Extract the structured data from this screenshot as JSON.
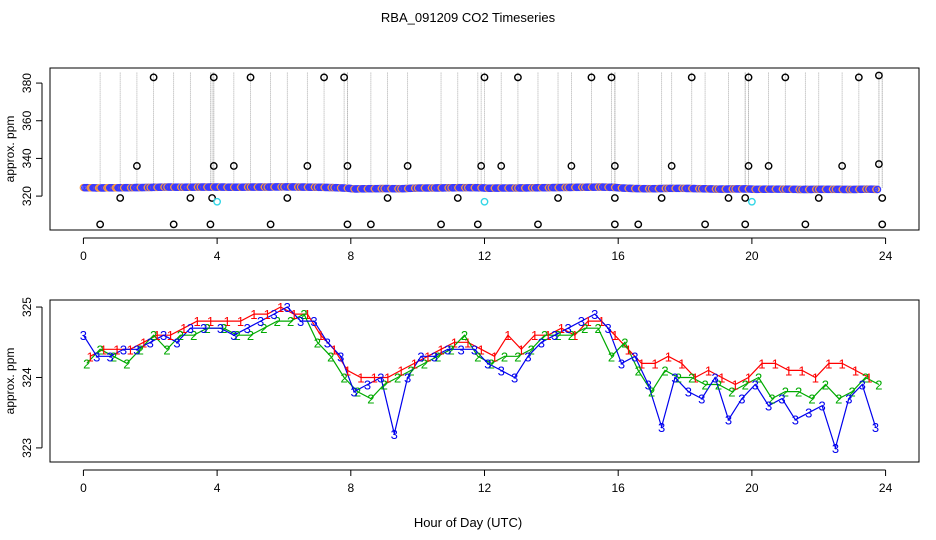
{
  "title": "RBA_091209  CO2 Timeseries",
  "xlabel": "Hour of Day (UTC)",
  "chart_data": [
    {
      "type": "scatter",
      "ylabel": "approx. ppm",
      "xlim": [
        -1,
        25
      ],
      "ylim": [
        302,
        388
      ],
      "xticks": [
        0,
        4,
        8,
        12,
        16,
        20,
        24
      ],
      "yticks": [
        320,
        340,
        360,
        380
      ],
      "grid": false,
      "series": [
        {
          "role": "trace",
          "color": "#3a3aff",
          "x": [
            0.0,
            0.25,
            0.5,
            0.75,
            1.0,
            1.5,
            2.0,
            2.5,
            3.0,
            3.5,
            3.9,
            4.1,
            4.5,
            5.0,
            5.5,
            6.0,
            6.5,
            7.0,
            7.5,
            7.9,
            8.1,
            8.5,
            9.0,
            9.5,
            10.0,
            10.5,
            11.0,
            11.5,
            11.9,
            12.1,
            12.5,
            13.0,
            13.5,
            14.0,
            14.5,
            15.0,
            15.5,
            15.9,
            16.1,
            16.5,
            17.0,
            17.5,
            18.0,
            18.5,
            19.0,
            19.5,
            19.9,
            20.1,
            20.5,
            21.0,
            21.5,
            22.0,
            22.5,
            23.0,
            23.5,
            23.8
          ],
          "y": [
            324.5,
            324.4,
            324.3,
            324.4,
            324.4,
            324.5,
            324.6,
            324.8,
            324.7,
            324.8,
            324.8,
            324.8,
            324.7,
            324.8,
            324.8,
            324.9,
            324.8,
            324.7,
            324.5,
            324.2,
            323.8,
            323.9,
            324.0,
            323.9,
            324.3,
            324.3,
            324.4,
            324.5,
            324.4,
            324.2,
            324.3,
            324.3,
            324.4,
            324.5,
            324.6,
            324.7,
            324.8,
            324.6,
            324.3,
            324.0,
            323.9,
            324.1,
            324.1,
            323.9,
            323.7,
            323.8,
            323.8,
            323.6,
            323.7,
            323.7,
            323.5,
            323.6,
            323.6,
            323.5,
            323.7,
            323.5
          ],
          "note_type": "line"
        },
        {
          "role": "outliers-high",
          "color": "#000000",
          "x": [
            2.1,
            3.9,
            5.0,
            7.2,
            7.8,
            12.0,
            13.0,
            15.2,
            15.8,
            18.2,
            19.9,
            21.0,
            23.2,
            23.8
          ],
          "y": [
            383,
            383,
            383,
            383,
            383,
            383,
            383,
            383,
            383,
            383,
            383,
            383,
            383,
            384
          ]
        },
        {
          "role": "outliers-mid",
          "color": "#000000",
          "x": [
            1.6,
            3.9,
            4.5,
            6.7,
            7.9,
            9.7,
            11.9,
            12.5,
            14.6,
            15.9,
            17.6,
            19.9,
            20.5,
            22.7,
            23.8
          ],
          "y": [
            336,
            336,
            336,
            336,
            336,
            336,
            336,
            336,
            336,
            336,
            336,
            336,
            336,
            336,
            337
          ]
        },
        {
          "role": "outliers-low-near",
          "color": "#000000",
          "x": [
            1.1,
            3.2,
            3.85,
            6.1,
            9.1,
            11.2,
            14.2,
            15.9,
            17.3,
            19.3,
            19.8,
            22.0,
            23.9
          ],
          "y": [
            319,
            319,
            319,
            319,
            319,
            319,
            319,
            319,
            319,
            319,
            319,
            319,
            319
          ]
        },
        {
          "role": "outliers-low",
          "color": "#000000",
          "x": [
            0.5,
            2.7,
            3.8,
            5.6,
            7.9,
            8.6,
            10.7,
            11.8,
            13.6,
            15.9,
            16.6,
            18.6,
            19.8,
            21.6,
            23.9
          ],
          "y": [
            305,
            305,
            305,
            305,
            305,
            305,
            305,
            305,
            305,
            305,
            305,
            305,
            305,
            305,
            305
          ]
        },
        {
          "role": "cyan-markers",
          "color": "#33d6e6",
          "x": [
            4.0,
            12.0,
            20.0
          ],
          "y": [
            317,
            317,
            317
          ]
        }
      ]
    },
    {
      "type": "line",
      "ylabel": "approx. ppm",
      "xlim": [
        -1,
        25
      ],
      "ylim": [
        322.8,
        325.1
      ],
      "xticks": [
        0,
        4,
        8,
        12,
        16,
        20,
        24
      ],
      "yticks": [
        323.0,
        324.0,
        325.0
      ],
      "grid": false,
      "series": [
        {
          "name": "1",
          "color": "#ff0000",
          "x": [
            0.2,
            0.6,
            1.0,
            1.4,
            1.8,
            2.2,
            2.6,
            3.0,
            3.4,
            3.8,
            4.3,
            4.7,
            5.1,
            5.5,
            5.9,
            6.3,
            6.7,
            7.1,
            7.5,
            7.9,
            8.3,
            8.7,
            9.1,
            9.5,
            9.9,
            10.3,
            10.7,
            11.1,
            11.5,
            11.9,
            12.3,
            12.7,
            13.1,
            13.5,
            13.9,
            14.3,
            14.7,
            15.1,
            15.5,
            15.9,
            16.3,
            16.7,
            17.1,
            17.5,
            17.9,
            18.3,
            18.7,
            19.1,
            19.5,
            19.9,
            20.3,
            20.7,
            21.1,
            21.5,
            21.9,
            22.3,
            22.7,
            23.1,
            23.5
          ],
          "y": [
            324.3,
            324.4,
            324.4,
            324.4,
            324.5,
            324.6,
            324.6,
            324.7,
            324.8,
            324.8,
            324.8,
            324.8,
            324.9,
            324.9,
            325.0,
            324.9,
            324.9,
            324.6,
            324.4,
            324.1,
            324.0,
            324.0,
            324.0,
            324.1,
            324.2,
            324.3,
            324.4,
            324.5,
            324.5,
            324.4,
            324.3,
            324.6,
            324.4,
            324.6,
            324.6,
            324.7,
            324.6,
            324.8,
            324.8,
            324.6,
            324.4,
            324.2,
            324.2,
            324.3,
            324.2,
            324.0,
            324.1,
            324.0,
            323.9,
            324.0,
            324.2,
            324.2,
            324.1,
            324.1,
            324.0,
            324.2,
            324.2,
            324.1,
            324.0
          ],
          "labels": "1"
        },
        {
          "name": "2",
          "color": "#00aa00",
          "x": [
            0.1,
            0.5,
            0.9,
            1.3,
            1.7,
            2.1,
            2.5,
            2.9,
            3.3,
            3.7,
            4.2,
            4.6,
            5.0,
            5.4,
            5.8,
            6.2,
            6.6,
            7.0,
            7.4,
            7.8,
            8.2,
            8.6,
            9.0,
            9.4,
            9.8,
            10.2,
            10.6,
            11.0,
            11.4,
            11.8,
            12.2,
            12.6,
            13.0,
            13.4,
            13.8,
            14.2,
            14.6,
            15.0,
            15.4,
            15.8,
            16.2,
            16.6,
            17.0,
            17.4,
            17.8,
            18.2,
            18.6,
            19.0,
            19.4,
            19.8,
            20.2,
            20.6,
            21.0,
            21.4,
            21.8,
            22.2,
            22.6,
            23.0,
            23.4,
            23.8
          ],
          "y": [
            324.2,
            324.4,
            324.3,
            324.2,
            324.4,
            324.6,
            324.4,
            324.6,
            324.6,
            324.7,
            324.7,
            324.6,
            324.6,
            324.7,
            324.8,
            324.8,
            324.9,
            324.5,
            324.3,
            324.0,
            323.8,
            323.7,
            323.9,
            324.0,
            324.1,
            324.2,
            324.3,
            324.4,
            324.6,
            324.3,
            324.2,
            324.3,
            324.3,
            324.4,
            324.6,
            324.6,
            324.6,
            324.7,
            324.7,
            324.3,
            324.5,
            324.1,
            323.8,
            324.1,
            324.0,
            324.0,
            323.9,
            323.9,
            323.8,
            323.9,
            324.0,
            323.7,
            323.8,
            323.8,
            323.7,
            323.9,
            323.7,
            323.8,
            324.0,
            323.9
          ],
          "labels": "2"
        },
        {
          "name": "3",
          "color": "#0000ee",
          "x": [
            0.0,
            0.4,
            0.8,
            1.2,
            1.6,
            2.0,
            2.4,
            2.8,
            3.2,
            3.6,
            4.1,
            4.5,
            4.9,
            5.3,
            5.7,
            6.1,
            6.5,
            6.9,
            7.3,
            7.7,
            8.1,
            8.5,
            8.9,
            9.3,
            9.7,
            10.1,
            10.5,
            10.9,
            11.3,
            11.7,
            12.1,
            12.5,
            12.9,
            13.3,
            13.7,
            14.1,
            14.5,
            14.9,
            15.3,
            15.7,
            16.1,
            16.5,
            16.9,
            17.3,
            17.7,
            18.1,
            18.5,
            18.9,
            19.3,
            19.7,
            20.1,
            20.5,
            20.9,
            21.3,
            21.7,
            22.1,
            22.5,
            22.9,
            23.3,
            23.7
          ],
          "y": [
            324.6,
            324.3,
            324.3,
            324.4,
            324.4,
            324.5,
            324.6,
            324.5,
            324.7,
            324.7,
            324.7,
            324.6,
            324.7,
            324.8,
            324.9,
            325.0,
            324.8,
            324.8,
            324.5,
            324.3,
            323.8,
            323.9,
            324.0,
            323.2,
            324.0,
            324.3,
            324.3,
            324.4,
            324.4,
            324.4,
            324.2,
            324.1,
            324.0,
            324.3,
            324.5,
            324.6,
            324.7,
            324.8,
            324.9,
            324.7,
            324.2,
            324.3,
            323.9,
            323.3,
            324.0,
            323.8,
            323.7,
            324.0,
            323.4,
            323.7,
            323.9,
            323.6,
            323.7,
            323.4,
            323.5,
            323.6,
            323.0,
            323.7,
            323.9,
            323.3
          ],
          "labels": "3"
        }
      ]
    }
  ],
  "colors": {
    "axis": "#000000",
    "trace_grey": "#9a9a9a",
    "trace_blue": "#3a3aff",
    "trace_orange": "#ff9933"
  }
}
